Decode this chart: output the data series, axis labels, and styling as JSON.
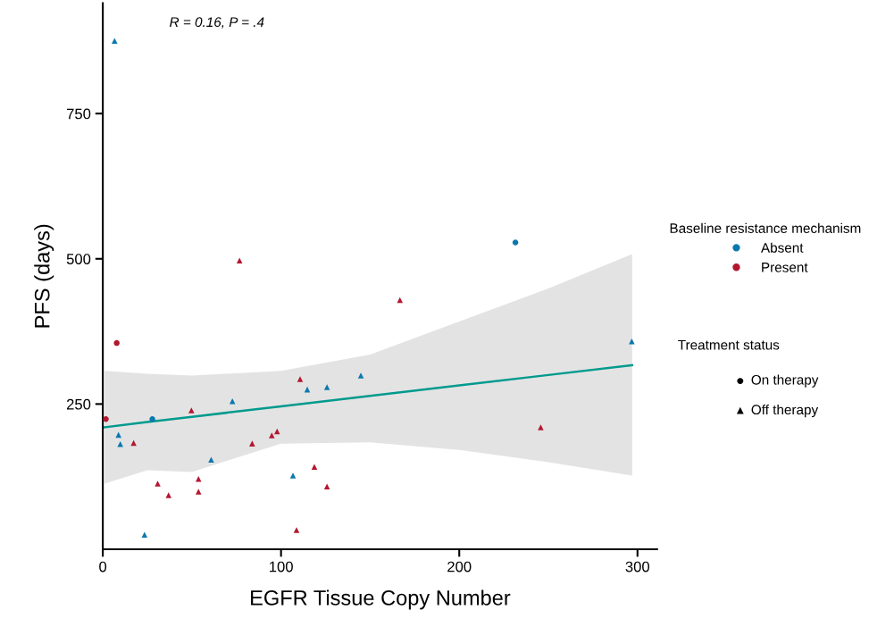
{
  "chart_data": {
    "type": "scatter",
    "xlabel": "EGFR Tissue Copy Number",
    "ylabel": "PFS (days)",
    "xlim": [
      0,
      311
    ],
    "ylim": [
      0,
      940
    ],
    "xticks": [
      0,
      100,
      200,
      300
    ],
    "yticks": [
      250,
      500,
      750
    ],
    "grid": false,
    "legend": "right",
    "legend_title": "Baseline resistance mechanism",
    "annotations": [
      "R = 0.16, P = .4",
      "Treatment status",
      "On therapy",
      "Off therapy"
    ],
    "series": [
      {
        "name": "Absent",
        "marker": "circle",
        "color": "#0b78ad",
        "x": [
          27.8,
          231.5
        ],
        "values": [
          224,
          528
        ]
      },
      {
        "marker": "triangle",
        "color": "#0b78ad",
        "x": [
          6.6,
          8.8,
          9.8,
          23.4,
          60.8,
          72.7,
          106.7,
          114.7,
          125.8,
          144.8,
          296.8
        ],
        "values": [
          875,
          197,
          181,
          25,
          154,
          255,
          127,
          275,
          279,
          299,
          358
        ]
      },
      {
        "name": "Present",
        "marker": "circle",
        "color": "#b3172f",
        "x": [
          1.7,
          7.8
        ],
        "values": [
          224,
          355
        ]
      },
      {
        "marker": "triangle",
        "color": "#b3172f",
        "x": [
          17.3,
          30.8,
          36.9,
          49.7,
          53.7,
          53.7,
          76.7,
          83.8,
          94.8,
          97.8,
          108.7,
          110.7,
          118.7,
          125.8,
          166.7,
          245.7
        ],
        "values": [
          183,
          113,
          93,
          239,
          121,
          99,
          497,
          182,
          196,
          203,
          33,
          293,
          142,
          108,
          429,
          210
        ]
      },
      {
        "type": "line",
        "color": "#009a8e",
        "x": [
          1,
          25,
          50,
          100,
          150,
          200,
          250,
          297
        ],
        "values": [
          210,
          219,
          228,
          246,
          264,
          282,
          300,
          317
        ],
        "lower": [
          113,
          136,
          133,
          182,
          184,
          171,
          150,
          127
        ],
        "upper": [
          307,
          302,
          299,
          307,
          335,
          392,
          449,
          508
        ]
      }
    ]
  }
}
